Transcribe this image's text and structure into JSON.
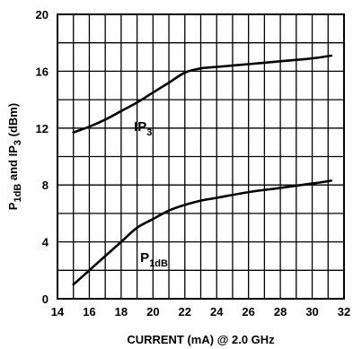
{
  "chart_data": {
    "type": "line",
    "xlabel": "CURRENT (mA) @ 2.0 GHz",
    "ylabel": {
      "parts": [
        "P",
        "1dB",
        " and IP",
        "3",
        " (dBm)"
      ]
    },
    "xlim": [
      14,
      32
    ],
    "ylim": [
      0,
      20
    ],
    "x_ticks": [
      "14",
      "16",
      "18",
      "20",
      "22",
      "24",
      "26",
      "28",
      "30",
      "32"
    ],
    "y_ticks": [
      "0",
      "4",
      "8",
      "12",
      "16",
      "20"
    ],
    "grid": true,
    "series": [
      {
        "name": "IP3",
        "label_main": "IP",
        "label_sub": "3",
        "x": [
          15,
          16,
          17,
          18,
          19,
          20,
          21,
          22,
          23,
          24,
          26,
          28,
          30,
          31.2
        ],
        "y": [
          11.7,
          12.1,
          12.6,
          13.2,
          13.8,
          14.5,
          15.2,
          15.9,
          16.2,
          16.3,
          16.5,
          16.7,
          16.9,
          17.1
        ]
      },
      {
        "name": "P1dB",
        "label_main": "P",
        "label_sub": "1dB",
        "x": [
          15,
          16,
          17,
          18,
          19,
          20,
          21,
          22,
          23,
          24,
          26,
          28,
          30,
          31.2
        ],
        "y": [
          1.0,
          2.0,
          3.0,
          4.0,
          5.0,
          5.6,
          6.2,
          6.6,
          6.9,
          7.1,
          7.5,
          7.8,
          8.1,
          8.3
        ]
      }
    ]
  }
}
